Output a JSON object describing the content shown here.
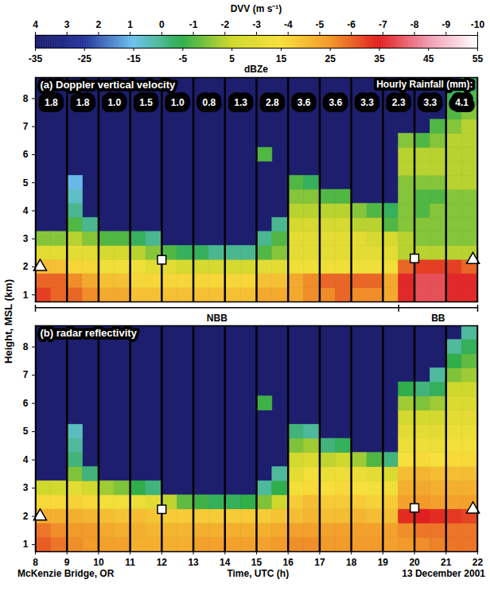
{
  "chart_data": {
    "type": "heatmap",
    "x_label": "Time, UTC (h)",
    "y_label": "Height, MSL (km)",
    "site": "McKenzie Bridge, OR",
    "date": "13 December 2001",
    "xlim": [
      8,
      22
    ],
    "xticks": [
      8,
      9,
      10,
      11,
      12,
      13,
      14,
      15,
      16,
      17,
      18,
      19,
      20,
      21,
      22
    ],
    "ylim": [
      0.75,
      8.75
    ],
    "yticks": [
      1,
      2,
      3,
      4,
      5,
      6,
      7,
      8
    ],
    "grid": true,
    "x": [
      8.25,
      8.75,
      9.25,
      9.75,
      10.25,
      10.75,
      11.25,
      11.75,
      12.25,
      12.75,
      13.25,
      13.75,
      14.25,
      14.75,
      15.25,
      15.75,
      16.25,
      16.75,
      17.25,
      17.75,
      18.25,
      18.75,
      19.25,
      19.75,
      20.25,
      20.75,
      21.25,
      21.75
    ],
    "y": [
      1.0,
      1.5,
      2.0,
      2.5,
      3.0,
      3.5,
      4.0,
      4.5,
      5.0,
      5.5,
      6.0,
      6.5,
      7.0,
      7.5,
      8.0,
      8.5
    ],
    "colors": [
      "#1e1e6e",
      "#24359a",
      "#6ec3ee",
      "#2fae4a",
      "#cfd82c",
      "#f7e03c",
      "#f29a2a",
      "#e02020",
      "#f09ab0",
      "#ffffff"
    ],
    "colorbar": {
      "dvv_label": "DVV (m s⁻¹)",
      "dvv_range": [
        4,
        -10
      ],
      "dvv_ticks": [
        4,
        3,
        2,
        1,
        0,
        -1,
        -2,
        -3,
        -4,
        -5,
        -6,
        -7,
        -8,
        -9,
        -10
      ],
      "dbz_label": "dBZe",
      "dbz_range": [
        -35,
        55
      ],
      "dbz_ticks": [
        -35,
        -25,
        -15,
        -5,
        5,
        15,
        25,
        35,
        45,
        55
      ]
    },
    "panels": [
      {
        "title": "(a) Doppler vertical velocity",
        "variable": "dvv",
        "tick_labels": "y",
        "values": [
          [
            -6.5,
            -6,
            -6,
            -5.5,
            -5,
            -5,
            -4.5,
            -4.5,
            -4.5,
            -4.5,
            -4.5,
            -4.5,
            -4.5,
            -4.5,
            -5,
            -5,
            -5,
            -5.5,
            -5.5,
            -6,
            -5.5,
            -5.5,
            -5,
            -7,
            -7.5,
            -7.5,
            -7,
            -7
          ],
          [
            -6,
            -6,
            -5.5,
            -5,
            -4.5,
            -4.5,
            -4,
            -4,
            -4,
            -4,
            -4,
            -4,
            -4,
            -4,
            -4.5,
            -4.5,
            -5,
            -5.5,
            -6,
            -6,
            -6,
            -6,
            -5,
            -7,
            -7.5,
            -7.5,
            -7,
            -7
          ],
          [
            -4.5,
            -4.5,
            -4,
            -4,
            -3.5,
            -3.5,
            -3.5,
            -3,
            -3,
            -2.5,
            -2.5,
            -2.5,
            -2.5,
            -2.5,
            -3,
            -3,
            -3.5,
            -3.5,
            -3.5,
            -3.5,
            -3.5,
            -3.5,
            -3.5,
            -6,
            -6.5,
            -6.5,
            -6.5,
            -6
          ],
          [
            -3,
            -3,
            -3,
            -3,
            -2.5,
            -2.5,
            -2,
            -1.5,
            -1,
            -0.5,
            -0.5,
            0,
            0,
            0,
            -1,
            -1.5,
            -3,
            -3,
            -3,
            -3,
            -3,
            -3,
            -3,
            -2,
            -2,
            -2,
            -2,
            -2
          ],
          [
            -1.5,
            -1.5,
            -2,
            -1.5,
            -1,
            -1,
            -0.5,
            0,
            null,
            null,
            null,
            null,
            null,
            null,
            0,
            -1,
            -3,
            -3,
            -3,
            -3,
            -3,
            -2.5,
            -2.5,
            -2,
            -1.5,
            -1.5,
            -1.5,
            -1.5
          ],
          [
            null,
            null,
            -1,
            0,
            null,
            null,
            null,
            null,
            null,
            null,
            null,
            null,
            null,
            null,
            null,
            0,
            -2.5,
            -2.5,
            -2.5,
            -2.5,
            -2,
            -2,
            -1,
            -1.5,
            -1.5,
            -1.5,
            -1.5,
            -1.5
          ],
          [
            null,
            null,
            0,
            null,
            null,
            null,
            null,
            null,
            null,
            null,
            null,
            null,
            null,
            null,
            null,
            null,
            -2,
            -2,
            -2,
            -2,
            -1.5,
            -1,
            -0.5,
            -1.5,
            -1,
            -1.5,
            -1.5,
            -1.5
          ],
          [
            null,
            null,
            0.5,
            null,
            null,
            null,
            null,
            null,
            null,
            null,
            null,
            null,
            null,
            null,
            null,
            null,
            -1.5,
            -1.5,
            -1,
            -1,
            null,
            null,
            null,
            -1.5,
            -1,
            -1,
            -1.5,
            -1.5
          ],
          [
            null,
            null,
            1,
            null,
            null,
            null,
            null,
            null,
            null,
            null,
            null,
            null,
            null,
            null,
            null,
            null,
            -1,
            -0.5,
            null,
            null,
            null,
            null,
            null,
            -1.5,
            -1.5,
            -1.5,
            -2,
            -2
          ],
          [
            null,
            null,
            null,
            null,
            null,
            null,
            null,
            null,
            null,
            null,
            null,
            null,
            null,
            null,
            null,
            null,
            null,
            null,
            null,
            null,
            null,
            null,
            null,
            -2,
            -2,
            -2,
            -2,
            -2
          ],
          [
            null,
            null,
            null,
            null,
            null,
            null,
            null,
            null,
            null,
            null,
            null,
            null,
            null,
            null,
            -1,
            null,
            null,
            null,
            null,
            null,
            null,
            null,
            null,
            -2,
            -2,
            -2,
            -2,
            -2
          ],
          [
            null,
            null,
            null,
            null,
            null,
            null,
            null,
            null,
            null,
            null,
            null,
            null,
            null,
            null,
            null,
            null,
            null,
            null,
            null,
            null,
            null,
            null,
            null,
            -1.5,
            -1,
            -1.5,
            -2,
            -2
          ],
          [
            null,
            null,
            null,
            null,
            null,
            null,
            null,
            null,
            null,
            null,
            null,
            null,
            null,
            null,
            null,
            null,
            null,
            null,
            null,
            null,
            null,
            null,
            null,
            null,
            null,
            -1,
            -1.5,
            -2
          ],
          [
            null,
            null,
            null,
            null,
            null,
            null,
            null,
            null,
            null,
            null,
            null,
            null,
            null,
            null,
            null,
            null,
            null,
            null,
            null,
            null,
            null,
            null,
            null,
            null,
            null,
            null,
            -1,
            -1.5
          ],
          [
            null,
            null,
            null,
            null,
            null,
            null,
            null,
            null,
            null,
            null,
            null,
            null,
            null,
            null,
            null,
            null,
            null,
            null,
            null,
            null,
            null,
            null,
            null,
            null,
            null,
            null,
            -0.5,
            -1
          ],
          [
            null,
            null,
            null,
            null,
            null,
            null,
            null,
            null,
            null,
            null,
            null,
            null,
            null,
            null,
            null,
            null,
            null,
            null,
            null,
            null,
            null,
            null,
            null,
            null,
            null,
            null,
            null,
            -0.5
          ]
        ]
      },
      {
        "title": "(b) radar reflectivity",
        "variable": "dbz",
        "values": [
          [
            30,
            28,
            26,
            25,
            24,
            24,
            22,
            22,
            22,
            22,
            24,
            24,
            24,
            24,
            24,
            25,
            26,
            26,
            25,
            25,
            25,
            25,
            24,
            25,
            26,
            27,
            28,
            28
          ],
          [
            28,
            26,
            25,
            25,
            23,
            22,
            22,
            21,
            21,
            21,
            22,
            22,
            22,
            22,
            22,
            23,
            24,
            24,
            24,
            24,
            24,
            24,
            24,
            26,
            28,
            28,
            28,
            28
          ],
          [
            22,
            22,
            22,
            21,
            20,
            19,
            20,
            19,
            18,
            18,
            18,
            18,
            18,
            18,
            18,
            19,
            20,
            21,
            20,
            20,
            21,
            20,
            20,
            34,
            35,
            34,
            33,
            32
          ],
          [
            16,
            16,
            17,
            16,
            14,
            14,
            12,
            10,
            4,
            -2,
            -4,
            -6,
            -6,
            -5,
            0,
            5,
            18,
            20,
            18,
            18,
            18,
            17,
            18,
            24,
            25,
            24,
            24,
            24
          ],
          [
            5,
            6,
            10,
            6,
            2,
            0,
            -5,
            -8,
            null,
            null,
            null,
            null,
            null,
            null,
            -10,
            -5,
            14,
            16,
            15,
            16,
            15,
            14,
            14,
            22,
            23,
            22,
            22,
            22
          ],
          [
            null,
            null,
            0,
            -8,
            null,
            null,
            null,
            null,
            null,
            null,
            null,
            null,
            null,
            null,
            null,
            -10,
            10,
            14,
            12,
            13,
            12,
            10,
            8,
            20,
            21,
            20,
            20,
            20
          ],
          [
            null,
            null,
            -8,
            null,
            null,
            null,
            null,
            null,
            null,
            null,
            null,
            null,
            null,
            null,
            null,
            null,
            6,
            8,
            4,
            5,
            2,
            -3,
            -8,
            15,
            16,
            15,
            16,
            16
          ],
          [
            null,
            null,
            -10,
            null,
            null,
            null,
            null,
            null,
            null,
            null,
            null,
            null,
            null,
            null,
            null,
            null,
            0,
            2,
            -8,
            -6,
            null,
            null,
            null,
            12,
            13,
            12,
            14,
            14
          ],
          [
            null,
            null,
            -12,
            null,
            null,
            null,
            null,
            null,
            null,
            null,
            null,
            null,
            null,
            null,
            null,
            null,
            -8,
            -10,
            null,
            null,
            null,
            null,
            null,
            10,
            10,
            10,
            12,
            12
          ],
          [
            null,
            null,
            null,
            null,
            null,
            null,
            null,
            null,
            null,
            null,
            null,
            null,
            null,
            null,
            null,
            null,
            null,
            null,
            null,
            null,
            null,
            null,
            null,
            6,
            6,
            6,
            10,
            10
          ],
          [
            null,
            null,
            null,
            null,
            null,
            null,
            null,
            null,
            null,
            null,
            null,
            null,
            null,
            null,
            -4,
            null,
            null,
            null,
            null,
            null,
            null,
            null,
            null,
            2,
            0,
            2,
            8,
            8
          ],
          [
            null,
            null,
            null,
            null,
            null,
            null,
            null,
            null,
            null,
            null,
            null,
            null,
            null,
            null,
            null,
            null,
            null,
            null,
            null,
            null,
            null,
            null,
            null,
            -5,
            -8,
            -6,
            5,
            5
          ],
          [
            null,
            null,
            null,
            null,
            null,
            null,
            null,
            null,
            null,
            null,
            null,
            null,
            null,
            null,
            null,
            null,
            null,
            null,
            null,
            null,
            null,
            null,
            null,
            null,
            null,
            -10,
            0,
            2
          ],
          [
            null,
            null,
            null,
            null,
            null,
            null,
            null,
            null,
            null,
            null,
            null,
            null,
            null,
            null,
            null,
            null,
            null,
            null,
            null,
            null,
            null,
            null,
            null,
            null,
            null,
            null,
            -5,
            -2
          ],
          [
            null,
            null,
            null,
            null,
            null,
            null,
            null,
            null,
            null,
            null,
            null,
            null,
            null,
            null,
            null,
            null,
            null,
            null,
            null,
            null,
            null,
            null,
            null,
            null,
            null,
            null,
            -10,
            -6
          ],
          [
            null,
            null,
            null,
            null,
            null,
            null,
            null,
            null,
            null,
            null,
            null,
            null,
            null,
            null,
            null,
            null,
            null,
            null,
            null,
            null,
            null,
            null,
            null,
            null,
            null,
            null,
            null,
            -10
          ]
        ]
      }
    ],
    "rainfall": {
      "label": "Hourly Rainfall (mm):",
      "hours": [
        8,
        9,
        10,
        11,
        12,
        13,
        14,
        15,
        16,
        17,
        18,
        19,
        20,
        21
      ],
      "values": [
        1.8,
        1.8,
        1.0,
        1.5,
        1.0,
        0.8,
        1.3,
        2.8,
        3.6,
        3.6,
        3.3,
        2.3,
        3.3,
        4.1
      ]
    },
    "markers": [
      {
        "x": 8.15,
        "y": 2.0,
        "marker": "triangle"
      },
      {
        "x": 12,
        "y": 2.25,
        "marker": "square"
      },
      {
        "x": 20,
        "y": 2.3,
        "marker": "square"
      },
      {
        "x": 21.85,
        "y": 2.25,
        "marker": "triangle"
      }
    ],
    "regimes": [
      {
        "label": "NBB",
        "start": 8,
        "end": 19.5
      },
      {
        "label": "BB",
        "start": 19.5,
        "end": 22
      }
    ]
  }
}
